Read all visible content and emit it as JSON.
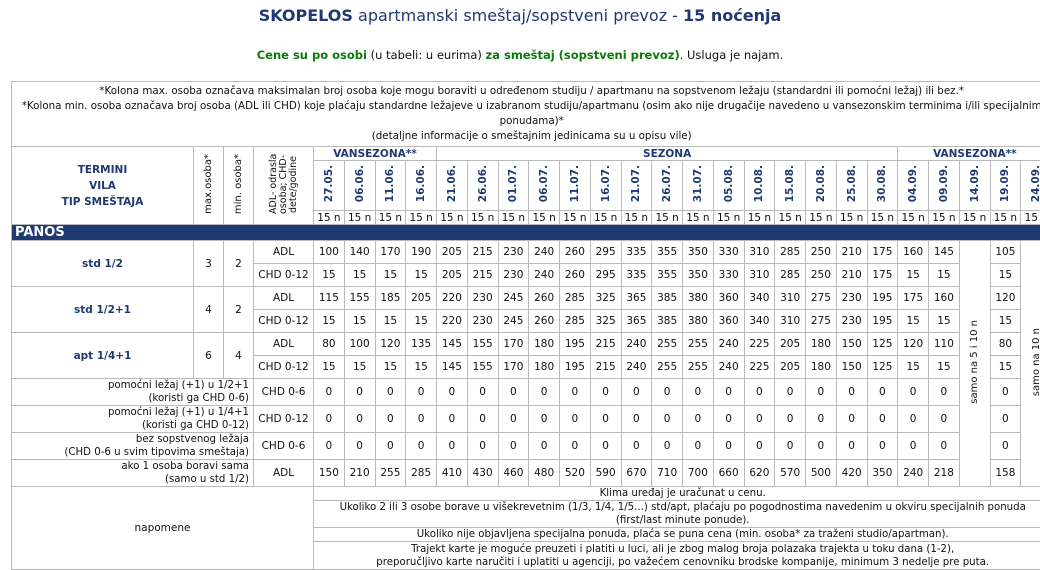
{
  "header": {
    "title_bold": "SKOPELOS",
    "title_mid": "apartmanski smeštaj/sopstveni prevoz - ",
    "title_bold2": "15 noćenja"
  },
  "subtitle": {
    "part1": "Cene su po osobi",
    "part2": " (u tabeli: u eurima) ",
    "part3": "za smeštaj (sopstveni prevoz)",
    "part4": ". Usluga je najam."
  },
  "notes_top": [
    "*Kolona max. osoba označava maksimalan broj osoba koje mogu boraviti u određenom studiju / apartmanu na sopstvenom ležaju (standardni ili pomoćni ležaj) ili bez.*",
    "*Kolona min. osoba označava broj osoba (ADL ili CHD) koje plaćaju standardne ležajeve u izabranom studiju/apartmanu (osim ako nije drugačije navedeno u vansezonskim terminima i/ili specijalnim ponudama)*",
    "(detaljne informacije o smeštajnim jedinicama su u opisu vile)"
  ],
  "headers": {
    "termini": "TERMINI",
    "vila": "VILA",
    "tip": "TIP SMEŠTAJA",
    "max": "max.osoba*",
    "min": "min. osoba*",
    "adl_col": "ADL- odrasla osoba; CHD- dete/godine",
    "season1": "VANSEZONA**",
    "season2": "SEZONA",
    "season3": "VANSEZONA**"
  },
  "dates": [
    "27.05.",
    "06.06.",
    "11.06.",
    "16.06.",
    "21.06.",
    "26.06.",
    "01.07.",
    "06.07.",
    "11.07.",
    "16.07.",
    "21.07.",
    "26.07.",
    "31.07.",
    "05.08.",
    "10.08.",
    "15.08.",
    "20.08.",
    "25.08.",
    "30.08.",
    "04.09.",
    "09.09.",
    "14.09.",
    "19.09.",
    "24.09."
  ],
  "nights": "15 n",
  "section": "PANOS",
  "rows": [
    {
      "type": "std 1/2",
      "max": "3",
      "min": "2",
      "lines": [
        {
          "label": "ADL",
          "vals": [
            "100",
            "140",
            "170",
            "190",
            "205",
            "215",
            "230",
            "240",
            "260",
            "295",
            "335",
            "355",
            "350",
            "330",
            "310",
            "285",
            "250",
            "210",
            "175",
            "160",
            "145",
            "105"
          ]
        },
        {
          "label": "CHD 0-12",
          "vals": [
            "15",
            "15",
            "15",
            "15",
            "205",
            "215",
            "230",
            "240",
            "260",
            "295",
            "335",
            "355",
            "350",
            "330",
            "310",
            "285",
            "250",
            "210",
            "175",
            "15",
            "15",
            "15"
          ]
        }
      ]
    },
    {
      "type": "std 1/2+1",
      "max": "4",
      "min": "2",
      "lines": [
        {
          "label": "ADL",
          "vals": [
            "115",
            "155",
            "185",
            "205",
            "220",
            "230",
            "245",
            "260",
            "285",
            "325",
            "365",
            "385",
            "380",
            "360",
            "340",
            "310",
            "275",
            "230",
            "195",
            "175",
            "160",
            "120"
          ]
        },
        {
          "label": "CHD 0-12",
          "vals": [
            "15",
            "15",
            "15",
            "15",
            "220",
            "230",
            "245",
            "260",
            "285",
            "325",
            "365",
            "385",
            "380",
            "360",
            "340",
            "310",
            "275",
            "230",
            "195",
            "15",
            "15",
            "15"
          ]
        }
      ]
    },
    {
      "type": "apt 1/4+1",
      "max": "6",
      "min": "4",
      "lines": [
        {
          "label": "ADL",
          "vals": [
            "80",
            "100",
            "120",
            "135",
            "145",
            "155",
            "170",
            "180",
            "195",
            "215",
            "240",
            "255",
            "255",
            "240",
            "225",
            "205",
            "180",
            "150",
            "125",
            "120",
            "110",
            "80"
          ]
        },
        {
          "label": "CHD 0-12",
          "vals": [
            "15",
            "15",
            "15",
            "15",
            "145",
            "155",
            "170",
            "180",
            "195",
            "215",
            "240",
            "255",
            "255",
            "240",
            "225",
            "205",
            "180",
            "150",
            "125",
            "15",
            "15",
            "15"
          ]
        }
      ]
    }
  ],
  "extras": [
    {
      "desc1": "pomoćni ležaj (+1) u 1/2+1",
      "desc2": "(koristi ga CHD 0-6)",
      "label": "CHD 0-6",
      "vals": [
        "0",
        "0",
        "0",
        "0",
        "0",
        "0",
        "0",
        "0",
        "0",
        "0",
        "0",
        "0",
        "0",
        "0",
        "0",
        "0",
        "0",
        "0",
        "0",
        "0",
        "0",
        "0"
      ]
    },
    {
      "desc1": "pomoćni ležaj (+1) u 1/4+1",
      "desc2": "(koristi ga CHD 0-12)",
      "label": "CHD 0-12",
      "vals": [
        "0",
        "0",
        "0",
        "0",
        "0",
        "0",
        "0",
        "0",
        "0",
        "0",
        "0",
        "0",
        "0",
        "0",
        "0",
        "0",
        "0",
        "0",
        "0",
        "0",
        "0",
        "0"
      ]
    },
    {
      "desc1": "bez sopstvenog ležaja",
      "desc2": "(CHD 0-6 u svim tipovima smeštaja)",
      "label": "CHD 0-6",
      "vals": [
        "0",
        "0",
        "0",
        "0",
        "0",
        "0",
        "0",
        "0",
        "0",
        "0",
        "0",
        "0",
        "0",
        "0",
        "0",
        "0",
        "0",
        "0",
        "0",
        "0",
        "0",
        "0"
      ]
    },
    {
      "desc1": "ako 1 osoba boravi sama",
      "desc2": "(samo u std 1/2)",
      "label": "ADL",
      "vals": [
        "150",
        "210",
        "255",
        "285",
        "410",
        "430",
        "460",
        "480",
        "520",
        "590",
        "670",
        "710",
        "700",
        "660",
        "620",
        "570",
        "500",
        "420",
        "350",
        "240",
        "218",
        "158"
      ]
    }
  ],
  "vmerge": {
    "col14_09": "samo na 5 i 10 n",
    "col24_09": "samo na 10 n"
  },
  "napomene_label": "napomene",
  "footnotes": [
    "Klima uređaj je uračunat u cenu.",
    "Ukoliko 2 ili 3 osobe borave u višekrevetnim (1/3, 1/4, 1/5...) std/apt, plaćaju po pogodnostima navedenim u okviru specijalnih ponuda (first/last minute ponude).",
    "Ukoliko nije objavljena specijalna ponuda, plaća se puna cena (min. osoba* za traženi studio/apartman).",
    "Trajekt karte je moguće preuzeti i platiti u luci, ali je zbog malog broja polazaka trajekta u toku dana (1-2),",
    "preporučljivo karte naručiti i uplatiti u agenciji, po važećem cenovniku brodske kompanije, minimum 3 nedelje pre puta."
  ]
}
